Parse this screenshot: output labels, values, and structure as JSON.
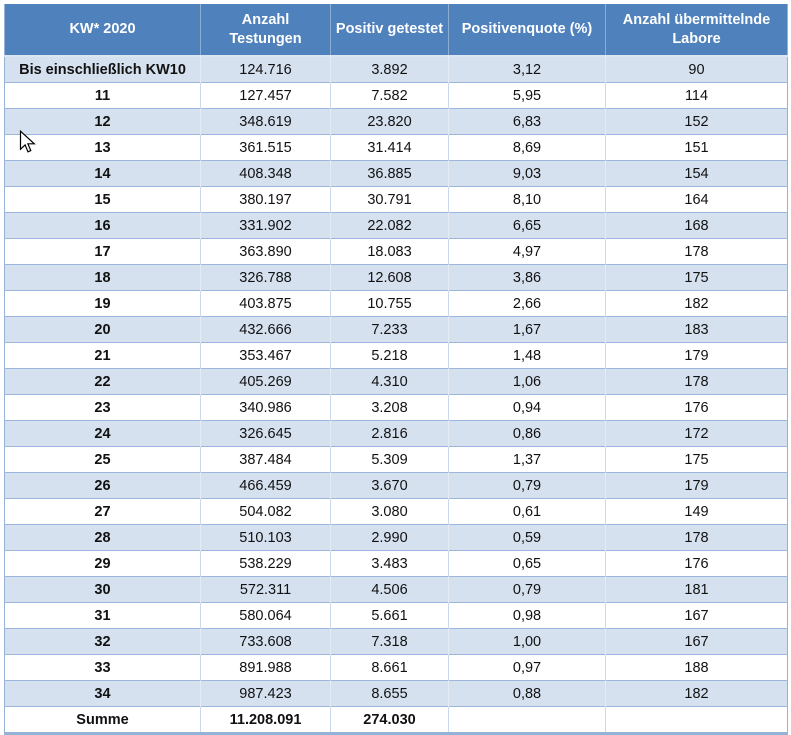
{
  "table": {
    "columns": [
      "KW* 2020",
      "Anzahl Testungen",
      "Positiv getestet",
      "Positivenquote (%)",
      "Anzahl übermittelnde Labore"
    ],
    "rows": [
      {
        "kw": "Bis einschließlich KW10",
        "testungen": "124.716",
        "positiv": "3.892",
        "quote": "3,12",
        "labore": "90"
      },
      {
        "kw": "11",
        "testungen": "127.457",
        "positiv": "7.582",
        "quote": "5,95",
        "labore": "114"
      },
      {
        "kw": "12",
        "testungen": "348.619",
        "positiv": "23.820",
        "quote": "6,83",
        "labore": "152"
      },
      {
        "kw": "13",
        "testungen": "361.515",
        "positiv": "31.414",
        "quote": "8,69",
        "labore": "151"
      },
      {
        "kw": "14",
        "testungen": "408.348",
        "positiv": "36.885",
        "quote": "9,03",
        "labore": "154"
      },
      {
        "kw": "15",
        "testungen": "380.197",
        "positiv": "30.791",
        "quote": "8,10",
        "labore": "164"
      },
      {
        "kw": "16",
        "testungen": "331.902",
        "positiv": "22.082",
        "quote": "6,65",
        "labore": "168"
      },
      {
        "kw": "17",
        "testungen": "363.890",
        "positiv": "18.083",
        "quote": "4,97",
        "labore": "178"
      },
      {
        "kw": "18",
        "testungen": "326.788",
        "positiv": "12.608",
        "quote": "3,86",
        "labore": "175"
      },
      {
        "kw": "19",
        "testungen": "403.875",
        "positiv": "10.755",
        "quote": "2,66",
        "labore": "182"
      },
      {
        "kw": "20",
        "testungen": "432.666",
        "positiv": "7.233",
        "quote": "1,67",
        "labore": "183"
      },
      {
        "kw": "21",
        "testungen": "353.467",
        "positiv": "5.218",
        "quote": "1,48",
        "labore": "179"
      },
      {
        "kw": "22",
        "testungen": "405.269",
        "positiv": "4.310",
        "quote": "1,06",
        "labore": "178"
      },
      {
        "kw": "23",
        "testungen": "340.986",
        "positiv": "3.208",
        "quote": "0,94",
        "labore": "176"
      },
      {
        "kw": "24",
        "testungen": "326.645",
        "positiv": "2.816",
        "quote": "0,86",
        "labore": "172"
      },
      {
        "kw": "25",
        "testungen": "387.484",
        "positiv": "5.309",
        "quote": "1,37",
        "labore": "175"
      },
      {
        "kw": "26",
        "testungen": "466.459",
        "positiv": "3.670",
        "quote": "0,79",
        "labore": "179"
      },
      {
        "kw": "27",
        "testungen": "504.082",
        "positiv": "3.080",
        "quote": "0,61",
        "labore": "149"
      },
      {
        "kw": "28",
        "testungen": "510.103",
        "positiv": "2.990",
        "quote": "0,59",
        "labore": "178"
      },
      {
        "kw": "29",
        "testungen": "538.229",
        "positiv": "3.483",
        "quote": "0,65",
        "labore": "176"
      },
      {
        "kw": "30",
        "testungen": "572.311",
        "positiv": "4.506",
        "quote": "0,79",
        "labore": "181"
      },
      {
        "kw": "31",
        "testungen": "580.064",
        "positiv": "5.661",
        "quote": "0,98",
        "labore": "167"
      },
      {
        "kw": "32",
        "testungen": "733.608",
        "positiv": "7.318",
        "quote": "1,00",
        "labore": "167"
      },
      {
        "kw": "33",
        "testungen": "891.988",
        "positiv": "8.661",
        "quote": "0,97",
        "labore": "188"
      },
      {
        "kw": "34",
        "testungen": "987.423",
        "positiv": "8.655",
        "quote": "0,88",
        "labore": "182"
      },
      {
        "kw": "Summe",
        "testungen": "11.208.091",
        "positiv": "274.030",
        "quote": "",
        "labore": ""
      }
    ],
    "colors": {
      "header_bg": "#4F81BD",
      "header_text": "#FFFFFF",
      "band_bg": "#D6E1F0",
      "row_bg": "#FFFFFF",
      "grid_line": "#9DB6DC",
      "outer_border": "#95B3D7",
      "text": "#111111"
    }
  }
}
